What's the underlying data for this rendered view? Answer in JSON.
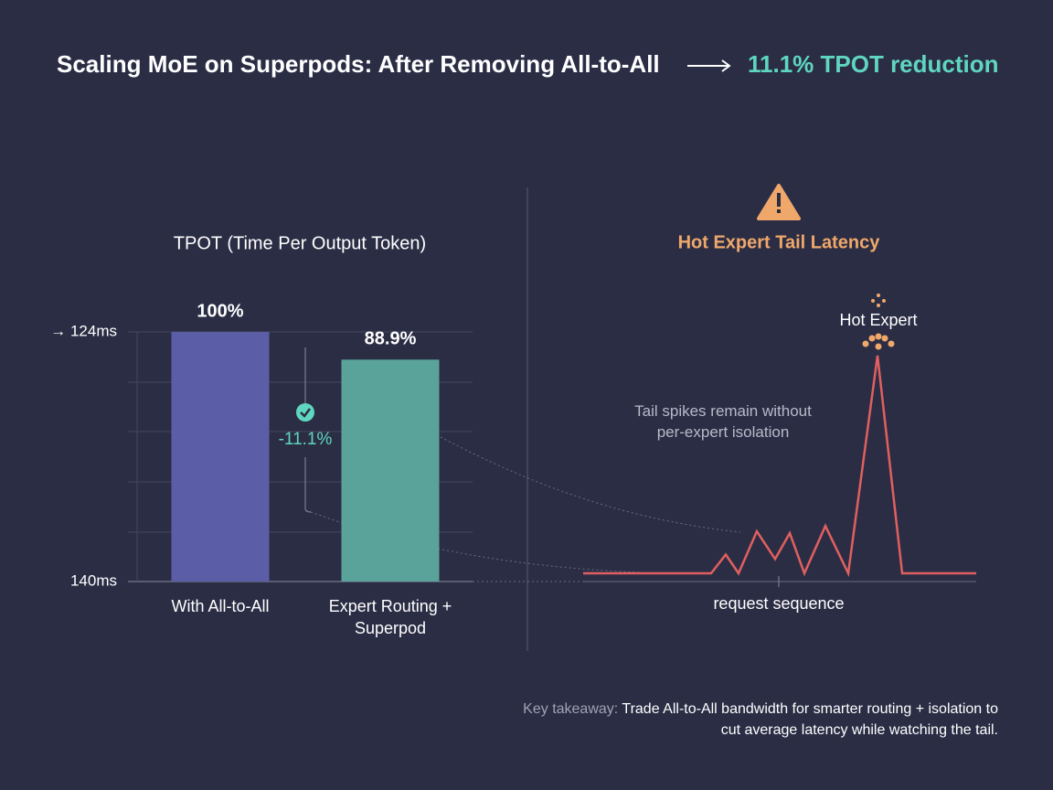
{
  "header": {
    "title": "Scaling MoE on Superpods: After Removing All-to-All",
    "highlight": "11.1% TPOT reduction"
  },
  "chart_data": [
    {
      "type": "bar",
      "title": "TPOT (Time Per Output Token)",
      "categories": [
        "With All-to-All",
        "Expert Routing + Superpod"
      ],
      "values": [
        100,
        88.9
      ],
      "value_labels": [
        "100%",
        "88.9%"
      ],
      "colors": [
        "#5b5ea6",
        "#5aa39a"
      ],
      "ylim": [
        0,
        100
      ],
      "top_label": "→ 124ms",
      "bottom_label": "140ms",
      "annotation": "-11.1%"
    },
    {
      "type": "line",
      "title": "Hot Expert Tail Latency",
      "x": [
        0,
        35,
        39,
        42.5,
        47.5,
        52.5,
        56.5,
        60.5,
        66.25,
        72.5,
        80.5,
        87.25,
        107.5
      ],
      "values": [
        0,
        0,
        21,
        0,
        47,
        16,
        45,
        0,
        53,
        0,
        244,
        0,
        0
      ],
      "xlim": [
        0,
        107.5
      ],
      "ylim": [
        0,
        250
      ],
      "color": "#e0605f",
      "xlabel": "request sequence",
      "peak_label": "Hot Expert",
      "annotation": "Tail spikes remain without per-expert isolation"
    }
  ],
  "footer": {
    "label": "Key takeaway:",
    "text": "Trade All-to-All bandwidth for smarter routing + isolation to cut average latency while watching the tail."
  }
}
